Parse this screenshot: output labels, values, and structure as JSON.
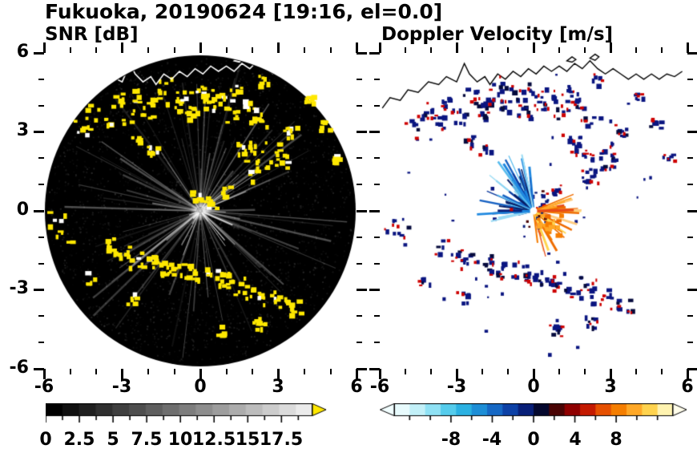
{
  "title": "Fukuoka, 20190624 [19:16, el=0.0]",
  "chart_data": {
    "type": "heatmap",
    "subtype": "radar_ppi_pair",
    "site": "Fukuoka",
    "date": "20190624",
    "time": "19:16",
    "elevation_deg": 0.0,
    "panels": [
      {
        "id": "snr",
        "title": "SNR [dB]",
        "background": "#000000",
        "echo_color": "#FFE800"
      },
      {
        "id": "velocity",
        "title": "Doppler Velocity [m/s]",
        "background": "#FFFFFF",
        "blob_color": "#0A1580",
        "blob_edge_color": "#CE0000"
      }
    ],
    "axes": {
      "xlim": [
        -6,
        6
      ],
      "ylim": [
        -6,
        6
      ],
      "xticks": [
        -6,
        -3,
        0,
        3,
        6
      ],
      "yticks": [
        6,
        3,
        0,
        -3,
        -6
      ],
      "xtick_labels": [
        "-6",
        "-3",
        "0",
        "3",
        "6"
      ],
      "ytick_labels": [
        "6",
        "3",
        "0",
        "-3",
        "-6"
      ],
      "minor_step": 1,
      "units": "km"
    },
    "snr_colorbar": {
      "label_values": [
        0,
        2.5,
        5,
        7.5,
        10,
        12.5,
        15,
        17.5
      ],
      "tick_labels": [
        "0",
        "2.5",
        "5",
        "7.5",
        "10",
        "12.5",
        "15",
        "17.5"
      ],
      "range": [
        0,
        19.8
      ],
      "minor_step": 1.25,
      "colormap": "grayscale",
      "start_color": "#000000",
      "end_color": "#EBEBEB",
      "over_arrow_color": "#FFE800"
    },
    "vel_colorbar": {
      "label_values": [
        -8,
        -4,
        0,
        4,
        8
      ],
      "tick_labels": [
        "-8",
        "-4",
        "0",
        "4",
        "8"
      ],
      "range": [
        -13.5,
        13.5
      ],
      "minor_step": 2,
      "segment_colors": [
        "#E8FBFD",
        "#C2F0F8",
        "#8FE1F4",
        "#55CCEC",
        "#2BB1E2",
        "#1D8ED6",
        "#1668C4",
        "#0D41A6",
        "#081F78",
        "#04082E",
        "#4A0404",
        "#8F0000",
        "#C41A00",
        "#E65000",
        "#F57E00",
        "#FFA827",
        "#FFD34E",
        "#FFF3B0"
      ],
      "under_arrow_color": "#F2FEFF",
      "over_arrow_color": "#FFFDEB"
    },
    "coastline": {
      "main": [
        [
          -5.9,
          3.9
        ],
        [
          -5.6,
          4.3
        ],
        [
          -5.2,
          4.2
        ],
        [
          -4.9,
          4.6
        ],
        [
          -4.5,
          4.5
        ],
        [
          -4.1,
          4.9
        ],
        [
          -3.7,
          4.8
        ],
        [
          -3.4,
          5.1
        ],
        [
          -3.0,
          4.9
        ],
        [
          -2.7,
          5.6
        ],
        [
          -2.5,
          5.2
        ],
        [
          -2.2,
          4.9
        ],
        [
          -1.9,
          5.1
        ],
        [
          -1.7,
          4.8
        ],
        [
          -1.4,
          5.2
        ],
        [
          -1.1,
          5.0
        ],
        [
          -0.8,
          5.3
        ],
        [
          -0.5,
          5.1
        ],
        [
          -0.2,
          5.4
        ],
        [
          0.1,
          5.2
        ],
        [
          0.4,
          5.5
        ],
        [
          0.7,
          5.3
        ],
        [
          1.0,
          5.5
        ],
        [
          1.3,
          5.3
        ],
        [
          1.6,
          5.6
        ],
        [
          1.9,
          5.4
        ],
        [
          2.2,
          5.7
        ],
        [
          2.5,
          5.4
        ],
        [
          2.8,
          5.2
        ],
        [
          3.1,
          5.4
        ],
        [
          3.4,
          5.2
        ],
        [
          3.7,
          5.0
        ],
        [
          4.0,
          5.2
        ],
        [
          4.3,
          5.0
        ],
        [
          4.6,
          5.2
        ],
        [
          4.9,
          5.0
        ],
        [
          5.2,
          5.2
        ],
        [
          5.5,
          5.1
        ],
        [
          5.8,
          5.3
        ]
      ],
      "islands": [
        [
          [
            1.3,
            5.7
          ],
          [
            1.5,
            5.85
          ],
          [
            1.65,
            5.75
          ],
          [
            1.5,
            5.65
          ]
        ],
        [
          [
            2.2,
            5.8
          ],
          [
            2.4,
            5.95
          ],
          [
            2.55,
            5.85
          ],
          [
            2.4,
            5.72
          ]
        ]
      ]
    },
    "clutter_blobs": [
      [
        -4.6,
        3.2,
        0.35
      ],
      [
        -4.2,
        3.8,
        0.3
      ],
      [
        -3.7,
        3.4,
        0.25
      ],
      [
        -3.3,
        4.2,
        0.3
      ],
      [
        -2.9,
        3.7,
        0.35
      ],
      [
        -2.5,
        4.4,
        0.3
      ],
      [
        -2.1,
        3.8,
        0.25
      ],
      [
        -1.8,
        4.3,
        0.3
      ],
      [
        -1.4,
        4.8,
        0.3
      ],
      [
        -1.1,
        4.0,
        0.25
      ],
      [
        -0.7,
        4.4,
        0.3
      ],
      [
        -0.4,
        3.8,
        0.25
      ],
      [
        0.0,
        4.6,
        0.3
      ],
      [
        0.3,
        4.1,
        0.25
      ],
      [
        0.7,
        4.4,
        0.3
      ],
      [
        1.1,
        3.7,
        0.3
      ],
      [
        1.4,
        4.5,
        0.3
      ],
      [
        1.8,
        4.1,
        0.3
      ],
      [
        2.2,
        3.5,
        0.35
      ],
      [
        2.4,
        5.0,
        0.2
      ],
      [
        -2.6,
        2.7,
        0.25
      ],
      [
        -1.9,
        2.3,
        0.2
      ],
      [
        3.4,
        3.0,
        0.25
      ],
      [
        4.1,
        4.3,
        0.2
      ],
      [
        4.7,
        3.3,
        0.2
      ],
      [
        5.2,
        2.1,
        0.2
      ],
      [
        1.5,
        2.5,
        0.4
      ],
      [
        1.9,
        2.2,
        0.35
      ],
      [
        2.3,
        1.9,
        0.4
      ],
      [
        2.7,
        2.3,
        0.35
      ],
      [
        3.0,
        1.9,
        0.3
      ],
      [
        2.1,
        1.4,
        0.3
      ],
      [
        0.4,
        0.4,
        0.25
      ],
      [
        0.9,
        0.8,
        0.2
      ],
      [
        -0.2,
        0.6,
        0.2
      ],
      [
        -5.7,
        -0.4,
        0.5
      ],
      [
        -5.3,
        -0.9,
        0.35
      ],
      [
        -3.5,
        -1.3,
        0.3
      ],
      [
        -3.0,
        -1.6,
        0.3
      ],
      [
        -2.5,
        -1.8,
        0.3
      ],
      [
        -2.0,
        -1.9,
        0.3
      ],
      [
        -1.5,
        -2.1,
        0.3
      ],
      [
        -1.0,
        -2.2,
        0.3
      ],
      [
        -0.5,
        -2.3,
        0.3
      ],
      [
        0.0,
        -2.4,
        0.3
      ],
      [
        0.5,
        -2.5,
        0.3
      ],
      [
        1.0,
        -2.6,
        0.3
      ],
      [
        1.5,
        -2.8,
        0.35
      ],
      [
        2.0,
        -3.0,
        0.35
      ],
      [
        2.5,
        -3.2,
        0.35
      ],
      [
        3.0,
        -3.4,
        0.3
      ],
      [
        3.5,
        -3.6,
        0.3
      ],
      [
        2.2,
        -4.2,
        0.25
      ],
      [
        -4.3,
        -2.5,
        0.25
      ],
      [
        0.8,
        -4.5,
        0.2
      ],
      [
        -2.7,
        -3.3,
        0.25
      ]
    ],
    "velocity_fan": {
      "blue_colors": [
        "#9ADCF5",
        "#55BBEE",
        "#1E88E0",
        "#1560C2",
        "#0D3A9E",
        "#071E66"
      ],
      "orange_colors": [
        "#FFCC80",
        "#FFA726",
        "#F57C00",
        "#EF6C00",
        "#E64A19",
        "#FFD54F"
      ],
      "blue_angle_range_deg": [
        95,
        195
      ],
      "orange_angle_range_deg": [
        -85,
        32
      ],
      "blue_max_length": 2.4,
      "orange_max_length": 1.9,
      "orange_cluster": {
        "x": 0.55,
        "y": -0.55,
        "r": 0.5
      },
      "dash": {
        "x1": -1.4,
        "x2": -0.45,
        "y": 0.05,
        "color": "#081F78"
      },
      "center_dot_color": "#FFFFFF"
    }
  }
}
